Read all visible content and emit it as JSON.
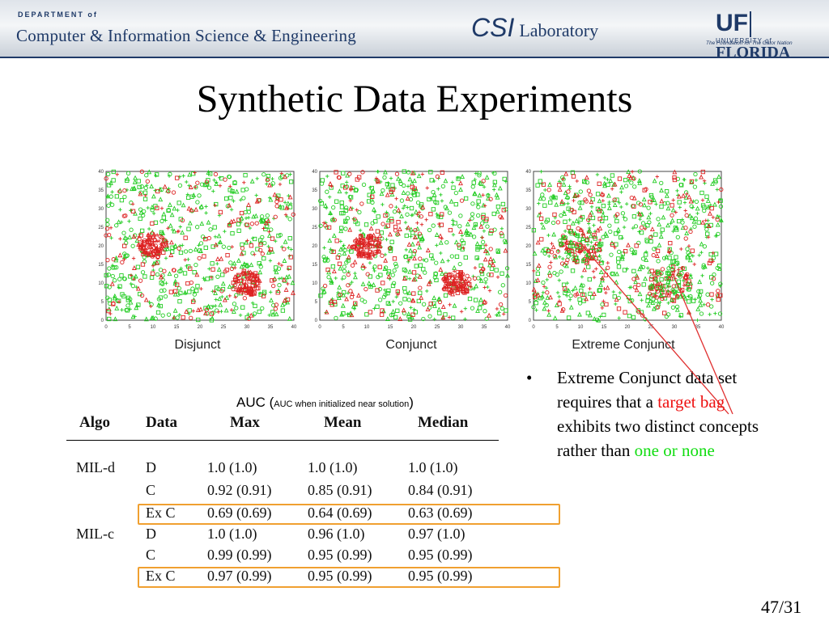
{
  "header": {
    "dept_small": "DEPARTMENT of",
    "dept_big": "Computer & Information Science & Engineering",
    "csi": "CSI",
    "lab": "Laboratory",
    "uf": "UF",
    "uf_university": "UNIVERSITY of",
    "uf_florida": "FLORIDA",
    "uf_tagline": "The Foundation for The Gator Nation"
  },
  "title": "Synthetic Data Experiments",
  "plots": [
    {
      "caption": "Disjunct",
      "clusters": [
        [
          10,
          20
        ],
        [
          30,
          10
        ]
      ]
    },
    {
      "caption": "Conjunct",
      "clusters": [
        [
          10,
          20
        ],
        [
          29,
          10
        ]
      ]
    },
    {
      "caption": "Extreme Conjunct",
      "clusters": [
        [
          10,
          20
        ],
        [
          29,
          10
        ]
      ]
    }
  ],
  "plot_axis": {
    "ticks": [
      "0",
      "5",
      "10",
      "15",
      "20",
      "25",
      "30",
      "35",
      "40"
    ]
  },
  "auc": {
    "prefix": "AUC (",
    "note": "AUC when initialized near solution",
    "suffix": ")"
  },
  "table": {
    "headers": [
      "Algo",
      "Data",
      "Max",
      "Mean",
      "Median"
    ],
    "rows": [
      {
        "algo": "MIL-d",
        "data": "D",
        "max": "1.0 (1.0)",
        "mean": "1.0 (1.0)",
        "median": "1.0 (1.0)"
      },
      {
        "algo": "",
        "data": "C",
        "max": "0.92 (0.91)",
        "mean": "0.85 (0.91)",
        "median": "0.84 (0.91)"
      },
      {
        "algo": "",
        "data": "Ex C",
        "max": "0.69 (0.69)",
        "mean": "0.64 (0.69)",
        "median": "0.63 (0.69)"
      },
      {
        "algo": "MIL-c",
        "data": "D",
        "max": "1.0 (1.0)",
        "mean": "0.96 (1.0)",
        "median": "0.97 (1.0)"
      },
      {
        "algo": "",
        "data": "C",
        "max": "0.99 (0.99)",
        "mean": "0.95 (0.99)",
        "median": "0.95 (0.99)"
      },
      {
        "algo": "",
        "data": "Ex C",
        "max": "0.97 (0.99)",
        "mean": "0.95 (0.99)",
        "median": "0.95 (0.99)"
      }
    ],
    "highlight_color": "#f0a030"
  },
  "bullet": {
    "symbol": "•",
    "part1": "Extreme Conjunct data set requires that a ",
    "red": "target bag",
    "part2": " exhibits two distinct concepts rather than ",
    "green": "one or none"
  },
  "page_number": "47/31",
  "colors": {
    "navy": "#1f3a68",
    "red_marker": "#dd2222",
    "green_marker": "#22cc22",
    "highlight": "#f0a030"
  }
}
